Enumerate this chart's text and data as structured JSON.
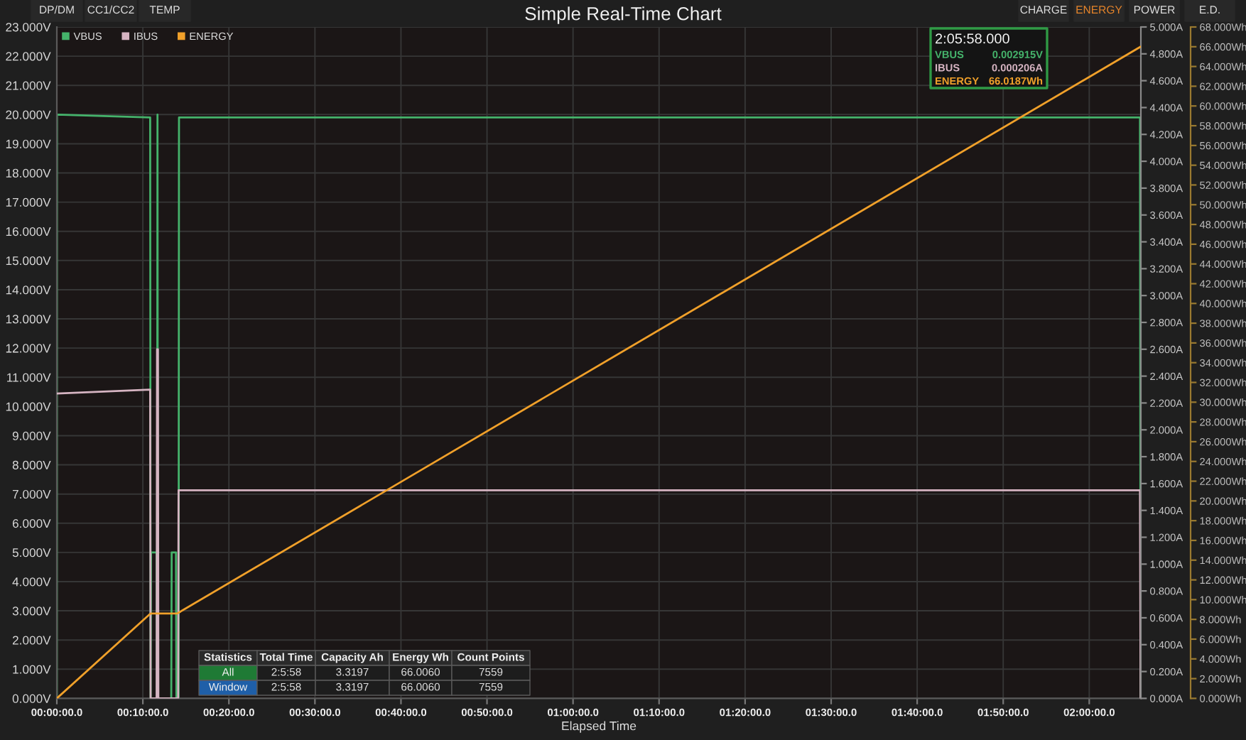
{
  "chart_data": {
    "type": "line",
    "title": "Simple Real-Time Chart",
    "xlabel": "Elapsed Time",
    "xlim": [
      "2000-01-01T00:00:00",
      "2000-01-01T02:06:00"
    ],
    "xticks": [
      {
        "value": "2000-01-01T00:00:00",
        "label": "00:00:00.0"
      },
      {
        "value": "2000-01-01T00:10:00",
        "label": "00:10:00.0"
      },
      {
        "value": "2000-01-01T00:20:00",
        "label": "00:20:00.0"
      },
      {
        "value": "2000-01-01T00:30:00",
        "label": "00:30:00.0"
      },
      {
        "value": "2000-01-01T00:40:00",
        "label": "00:40:00.0"
      },
      {
        "value": "2000-01-01T00:50:00",
        "label": "00:50:00.0"
      },
      {
        "value": "2000-01-01T01:00:00",
        "label": "01:00:00.0"
      },
      {
        "value": "2000-01-01T01:10:00",
        "label": "01:10:00.0"
      },
      {
        "value": "2000-01-01T01:20:00",
        "label": "01:20:00.0"
      },
      {
        "value": "2000-01-01T01:30:00",
        "label": "01:30:00.0"
      },
      {
        "value": "2000-01-01T01:40:00",
        "label": "01:40:00.0"
      },
      {
        "value": "2000-01-01T01:50:00",
        "label": "01:50:00.0"
      },
      {
        "value": "2000-01-01T02:00:00",
        "label": "02:00:00.0"
      }
    ],
    "ylim": [
      0,
      23
    ],
    "yticks": [
      {
        "value": 0,
        "label": "0.000V"
      },
      {
        "value": 1,
        "label": "1.000V"
      },
      {
        "value": 2,
        "label": "2.000V"
      },
      {
        "value": 3,
        "label": "3.000V"
      },
      {
        "value": 4,
        "label": "4.000V"
      },
      {
        "value": 5,
        "label": "5.000V"
      },
      {
        "value": 6,
        "label": "6.000V"
      },
      {
        "value": 7,
        "label": "7.000V"
      },
      {
        "value": 8,
        "label": "8.000V"
      },
      {
        "value": 9,
        "label": "9.000V"
      },
      {
        "value": 10,
        "label": "10.000V"
      },
      {
        "value": 11,
        "label": "11.000V"
      },
      {
        "value": 12,
        "label": "12.000V"
      },
      {
        "value": 13,
        "label": "13.000V"
      },
      {
        "value": 14,
        "label": "14.000V"
      },
      {
        "value": 15,
        "label": "15.000V"
      },
      {
        "value": 16,
        "label": "16.000V"
      },
      {
        "value": 17,
        "label": "17.000V"
      },
      {
        "value": 18,
        "label": "18.000V"
      },
      {
        "value": 19,
        "label": "19.000V"
      },
      {
        "value": 20,
        "label": "20.000V"
      },
      {
        "value": 21,
        "label": "21.000V"
      },
      {
        "value": 22,
        "label": "22.000V"
      },
      {
        "value": 23,
        "label": "23.000V"
      }
    ],
    "y2lim": [
      0,
      5
    ],
    "y2ticks": [
      {
        "value": 0,
        "label": "0.000A"
      },
      {
        "value": 0.2,
        "label": "0.200A"
      },
      {
        "value": 0.4,
        "label": "0.400A"
      },
      {
        "value": 0.6,
        "label": "0.600A"
      },
      {
        "value": 0.8,
        "label": "0.800A"
      },
      {
        "value": 1,
        "label": "1.000A"
      },
      {
        "value": 1.2,
        "label": "1.200A"
      },
      {
        "value": 1.4,
        "label": "1.400A"
      },
      {
        "value": 1.6,
        "label": "1.600A"
      },
      {
        "value": 1.8,
        "label": "1.800A"
      },
      {
        "value": 2,
        "label": "2.000A"
      },
      {
        "value": 2.2,
        "label": "2.200A"
      },
      {
        "value": 2.4,
        "label": "2.400A"
      },
      {
        "value": 2.6,
        "label": "2.600A"
      },
      {
        "value": 2.8,
        "label": "2.800A"
      },
      {
        "value": 3,
        "label": "3.000A"
      },
      {
        "value": 3.2,
        "label": "3.200A"
      },
      {
        "value": 3.4,
        "label": "3.400A"
      },
      {
        "value": 3.6,
        "label": "3.600A"
      },
      {
        "value": 3.8,
        "label": "3.800A"
      },
      {
        "value": 4,
        "label": "4.000A"
      },
      {
        "value": 4.2,
        "label": "4.200A"
      },
      {
        "value": 4.4,
        "label": "4.400A"
      },
      {
        "value": 4.6,
        "label": "4.600A"
      },
      {
        "value": 4.8,
        "label": "4.800A"
      },
      {
        "value": 5,
        "label": "5.000A"
      }
    ],
    "y3lim": [
      0,
      68
    ],
    "y3ticks": [
      {
        "value": 0,
        "label": "0.000Wh"
      },
      {
        "value": 2,
        "label": "2.000Wh"
      },
      {
        "value": 4,
        "label": "4.000Wh"
      },
      {
        "value": 6,
        "label": "6.000Wh"
      },
      {
        "value": 8,
        "label": "8.000Wh"
      },
      {
        "value": 10,
        "label": "10.000Wh"
      },
      {
        "value": 12,
        "label": "12.000Wh"
      },
      {
        "value": 14,
        "label": "14.000Wh"
      },
      {
        "value": 16,
        "label": "16.000Wh"
      },
      {
        "value": 18,
        "label": "18.000Wh"
      },
      {
        "value": 20,
        "label": "20.000Wh"
      },
      {
        "value": 22,
        "label": "22.000Wh"
      },
      {
        "value": 24,
        "label": "24.000Wh"
      },
      {
        "value": 26,
        "label": "26.000Wh"
      },
      {
        "value": 28,
        "label": "28.000Wh"
      },
      {
        "value": 30,
        "label": "30.000Wh"
      },
      {
        "value": 32,
        "label": "32.000Wh"
      },
      {
        "value": 34,
        "label": "34.000Wh"
      },
      {
        "value": 36,
        "label": "36.000Wh"
      },
      {
        "value": 38,
        "label": "38.000Wh"
      },
      {
        "value": 40,
        "label": "40.000Wh"
      },
      {
        "value": 42,
        "label": "42.000Wh"
      },
      {
        "value": 44,
        "label": "44.000Wh"
      },
      {
        "value": 46,
        "label": "46.000Wh"
      },
      {
        "value": 48,
        "label": "48.000Wh"
      },
      {
        "value": 50,
        "label": "50.000Wh"
      },
      {
        "value": 52,
        "label": "52.000Wh"
      },
      {
        "value": 54,
        "label": "54.000Wh"
      },
      {
        "value": 56,
        "label": "56.000Wh"
      },
      {
        "value": 58,
        "label": "58.000Wh"
      },
      {
        "value": 60,
        "label": "60.000Wh"
      },
      {
        "value": 62,
        "label": "62.000Wh"
      },
      {
        "value": 64,
        "label": "64.000Wh"
      },
      {
        "value": 66,
        "label": "66.000Wh"
      },
      {
        "value": 68,
        "label": "68.000Wh"
      }
    ],
    "grid": true,
    "legend": "top left",
    "series": [
      {
        "name": "VBUS",
        "color": "#45b36b",
        "axis": "y",
        "x": [
          "2000-01-01T00:00:00",
          "2000-01-01T00:00:01",
          "2000-01-01T00:10:51",
          "2000-01-01T00:10:54",
          "2000-01-01T00:10:57",
          "2000-01-01T00:11:36",
          "2000-01-01T00:11:39",
          "2000-01-01T00:11:42",
          "2000-01-01T00:11:45",
          "2000-01-01T00:13:18",
          "2000-01-01T00:13:21",
          "2000-01-01T00:13:51",
          "2000-01-01T00:13:54",
          "2000-01-01T00:14:09",
          "2000-01-01T00:14:12",
          "2000-01-01T02:05:54",
          "2000-01-01T02:05:58"
        ],
        "values": [
          0,
          20.0,
          19.9,
          0,
          5.0,
          5.0,
          0,
          20.0,
          0,
          0,
          5.0,
          5.0,
          0,
          0,
          19.9,
          19.9,
          0
        ]
      },
      {
        "name": "IBUS",
        "color": "#d6b4c2",
        "axis": "y2",
        "x": [
          "2000-01-01T00:00:00",
          "2000-01-01T00:10:51",
          "2000-01-01T00:10:54",
          "2000-01-01T00:11:36",
          "2000-01-01T00:11:39",
          "2000-01-01T00:11:45",
          "2000-01-01T00:11:48",
          "2000-01-01T00:14:06",
          "2000-01-01T00:14:09",
          "2000-01-01T02:05:54",
          "2000-01-01T02:05:58"
        ],
        "values": [
          2.27,
          2.3,
          0,
          0,
          2.6,
          2.6,
          0,
          0,
          1.55,
          1.55,
          0
        ]
      },
      {
        "name": "ENERGY",
        "color": "#f0a02a",
        "axis": "y3",
        "x": [
          "2000-01-01T00:00:00",
          "2000-01-01T00:10:54",
          "2000-01-01T00:14:00",
          "2000-01-01T02:05:58"
        ],
        "values": [
          0,
          8.6,
          8.6,
          66.0
        ]
      }
    ],
    "annotations": [
      "DP/DM",
      "CC1/CC2",
      "TEMP",
      "CHARGE",
      "ENERGY",
      "POWER",
      "E.D.",
      "2:05:58.000",
      "0.002915V",
      "0.000206A",
      "66.0187Wh",
      "Statistics",
      "Total Time",
      "Capacity Ah",
      "Energy Wh",
      "Count Points",
      "All",
      "2:5:58",
      "3.3197",
      "66.0060",
      "7559",
      "Window",
      "2:5:58",
      "3.3197",
      "66.0060",
      "7559"
    ]
  }
}
